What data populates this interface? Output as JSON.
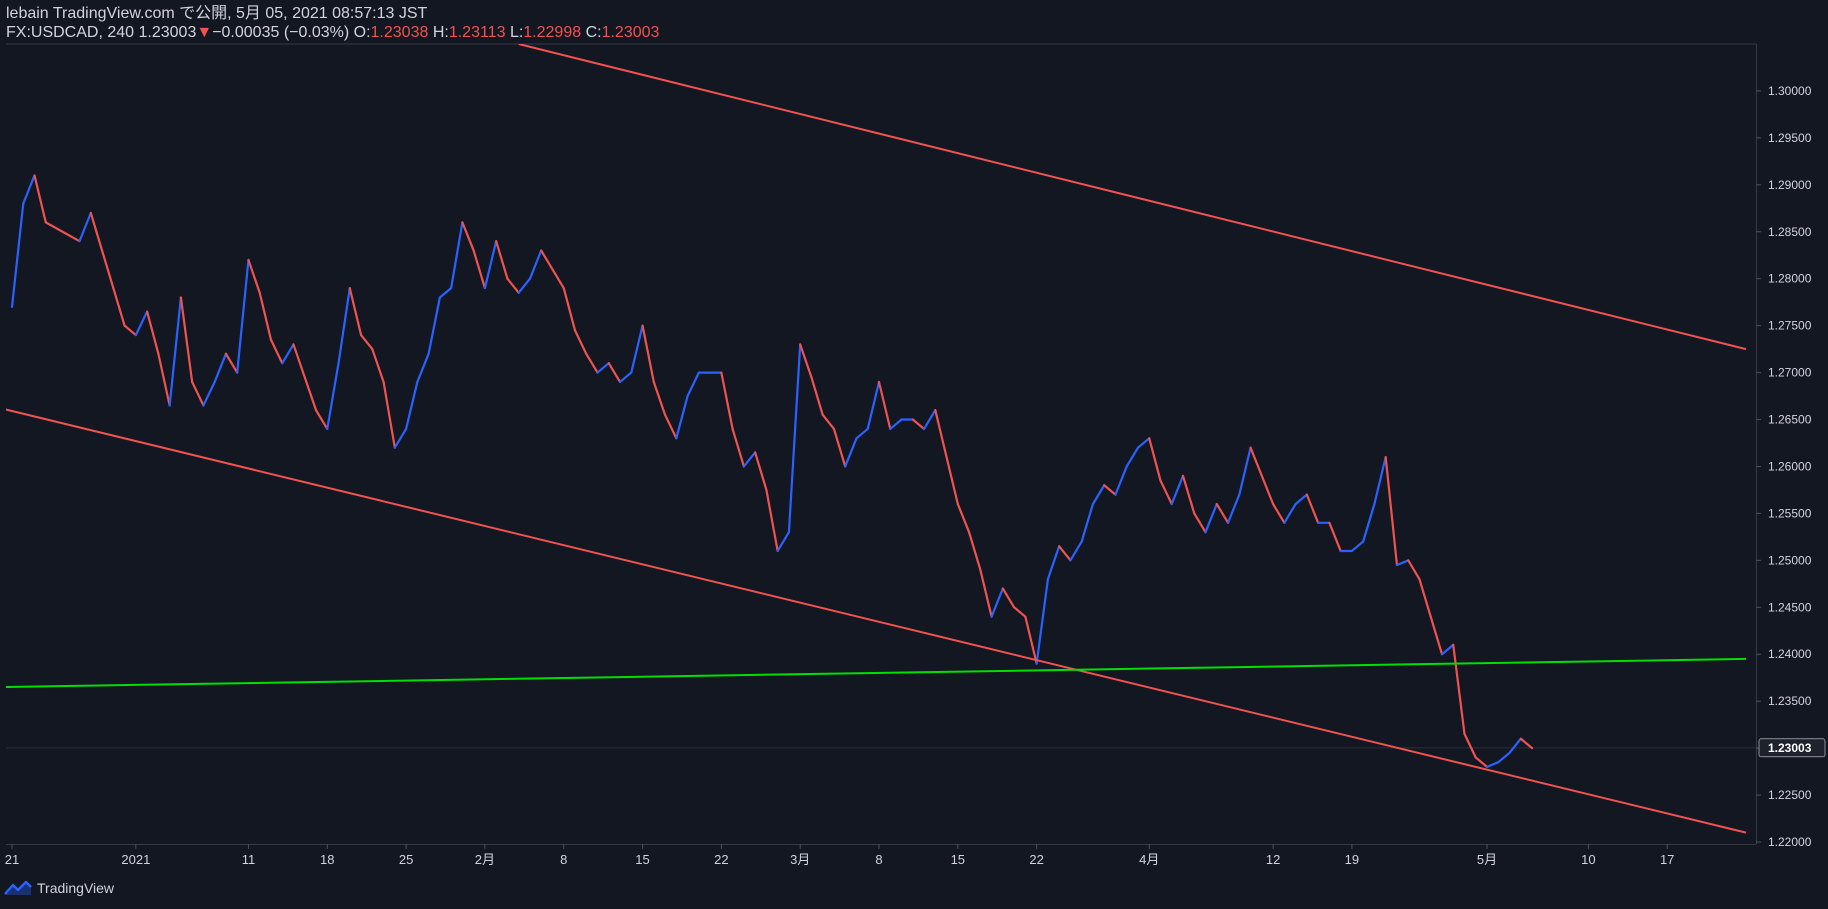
{
  "header": {
    "publish_line": "lebain TradingView.com で公開, 5月 05, 2021 08:57:13 JST",
    "symbol": "FX:USDCAD, 240",
    "last": "1.23003",
    "change": "−0.00035 (−0.03%)",
    "o_label": "O:",
    "o_value": "1.23038",
    "h_label": "H:",
    "h_value": "1.23113",
    "l_label": "L:",
    "l_value": "1.22998",
    "c_label": "C:",
    "c_value": "1.23003"
  },
  "footer": {
    "brand": "TradingView"
  },
  "colors": {
    "background": "#131722",
    "up": "#2962ff",
    "down": "#ef5350",
    "channel": "#f05350",
    "support": "#00e000",
    "text": "#d1d4dc"
  },
  "chart_data": {
    "type": "line",
    "symbol": "FX:USDCAD",
    "interval": "240",
    "y_range": [
      1.22,
      1.305
    ],
    "y_ticks": [
      "1.22000",
      "1.22500",
      "1.23000",
      "1.23500",
      "1.24000",
      "1.24500",
      "1.25000",
      "1.25500",
      "1.26000",
      "1.26500",
      "1.27000",
      "1.27500",
      "1.28000",
      "1.28500",
      "1.29000",
      "1.29500",
      "1.30000"
    ],
    "last_price_label": "1.23003",
    "x_range": [
      "2020-12-21",
      "2021-05-24"
    ],
    "x_ticks": [
      {
        "label": "21",
        "date": "2020-12-21"
      },
      {
        "label": "2021",
        "date": "2021-01-01"
      },
      {
        "label": "11",
        "date": "2021-01-11"
      },
      {
        "label": "18",
        "date": "2021-01-18"
      },
      {
        "label": "25",
        "date": "2021-01-25"
      },
      {
        "label": "2月",
        "date": "2021-02-01"
      },
      {
        "label": "8",
        "date": "2021-02-08"
      },
      {
        "label": "15",
        "date": "2021-02-15"
      },
      {
        "label": "22",
        "date": "2021-02-22"
      },
      {
        "label": "3月",
        "date": "2021-03-01"
      },
      {
        "label": "8",
        "date": "2021-03-08"
      },
      {
        "label": "15",
        "date": "2021-03-15"
      },
      {
        "label": "22",
        "date": "2021-03-22"
      },
      {
        "label": "4月",
        "date": "2021-04-01"
      },
      {
        "label": "12",
        "date": "2021-04-12"
      },
      {
        "label": "19",
        "date": "2021-04-19"
      },
      {
        "label": "5月",
        "date": "2021-05-01"
      },
      {
        "label": "10",
        "date": "2021-05-10"
      },
      {
        "label": "17",
        "date": "2021-05-17"
      }
    ],
    "series": [
      {
        "kind": "price",
        "points": [
          [
            "2020-12-21",
            1.277
          ],
          [
            "2020-12-22",
            1.288
          ],
          [
            "2020-12-23",
            1.291
          ],
          [
            "2020-12-24",
            1.286
          ],
          [
            "2020-12-27",
            1.284
          ],
          [
            "2020-12-28",
            1.287
          ],
          [
            "2020-12-29",
            1.283
          ],
          [
            "2020-12-30",
            1.279
          ],
          [
            "2020-12-31",
            1.275
          ],
          [
            "2021-01-01",
            1.274
          ],
          [
            "2021-01-02",
            1.2765
          ],
          [
            "2021-01-03",
            1.272
          ],
          [
            "2021-01-04",
            1.2665
          ],
          [
            "2021-01-05",
            1.278
          ],
          [
            "2021-01-06",
            1.269
          ],
          [
            "2021-01-07",
            1.2665
          ],
          [
            "2021-01-08",
            1.269
          ],
          [
            "2021-01-09",
            1.272
          ],
          [
            "2021-01-10",
            1.27
          ],
          [
            "2021-01-11",
            1.282
          ],
          [
            "2021-01-12",
            1.2785
          ],
          [
            "2021-01-13",
            1.2735
          ],
          [
            "2021-01-14",
            1.271
          ],
          [
            "2021-01-15",
            1.273
          ],
          [
            "2021-01-17",
            1.266
          ],
          [
            "2021-01-18",
            1.264
          ],
          [
            "2021-01-19",
            1.271
          ],
          [
            "2021-01-20",
            1.279
          ],
          [
            "2021-01-21",
            1.274
          ],
          [
            "2021-01-22",
            1.2725
          ],
          [
            "2021-01-23",
            1.269
          ],
          [
            "2021-01-24",
            1.262
          ],
          [
            "2021-01-25",
            1.264
          ],
          [
            "2021-01-26",
            1.269
          ],
          [
            "2021-01-27",
            1.272
          ],
          [
            "2021-01-28",
            1.278
          ],
          [
            "2021-01-29",
            1.279
          ],
          [
            "2021-01-30",
            1.286
          ],
          [
            "2021-01-31",
            1.283
          ],
          [
            "2021-02-01",
            1.279
          ],
          [
            "2021-02-02",
            1.284
          ],
          [
            "2021-02-03",
            1.28
          ],
          [
            "2021-02-04",
            1.2785
          ],
          [
            "2021-02-05",
            1.28
          ],
          [
            "2021-02-06",
            1.283
          ],
          [
            "2021-02-07",
            1.281
          ],
          [
            "2021-02-08",
            1.279
          ],
          [
            "2021-02-09",
            1.2745
          ],
          [
            "2021-02-10",
            1.272
          ],
          [
            "2021-02-11",
            1.27
          ],
          [
            "2021-02-12",
            1.271
          ],
          [
            "2021-02-13",
            1.269
          ],
          [
            "2021-02-14",
            1.27
          ],
          [
            "2021-02-15",
            1.275
          ],
          [
            "2021-02-16",
            1.269
          ],
          [
            "2021-02-17",
            1.2655
          ],
          [
            "2021-02-18",
            1.263
          ],
          [
            "2021-02-19",
            1.2675
          ],
          [
            "2021-02-20",
            1.27
          ],
          [
            "2021-02-21",
            1.27
          ],
          [
            "2021-02-22",
            1.27
          ],
          [
            "2021-02-23",
            1.264
          ],
          [
            "2021-02-24",
            1.26
          ],
          [
            "2021-02-25",
            1.2615
          ],
          [
            "2021-02-26",
            1.2575
          ],
          [
            "2021-02-27",
            1.251
          ],
          [
            "2021-02-28",
            1.253
          ],
          [
            "2021-03-01",
            1.273
          ],
          [
            "2021-03-02",
            1.2695
          ],
          [
            "2021-03-03",
            1.2655
          ],
          [
            "2021-03-04",
            1.264
          ],
          [
            "2021-03-05",
            1.26
          ],
          [
            "2021-03-06",
            1.263
          ],
          [
            "2021-03-07",
            1.264
          ],
          [
            "2021-03-08",
            1.269
          ],
          [
            "2021-03-09",
            1.264
          ],
          [
            "2021-03-10",
            1.265
          ],
          [
            "2021-03-11",
            1.265
          ],
          [
            "2021-03-12",
            1.264
          ],
          [
            "2021-03-13",
            1.266
          ],
          [
            "2021-03-14",
            1.261
          ],
          [
            "2021-03-15",
            1.256
          ],
          [
            "2021-03-16",
            1.253
          ],
          [
            "2021-03-17",
            1.249
          ],
          [
            "2021-03-18",
            1.244
          ],
          [
            "2021-03-19",
            1.247
          ],
          [
            "2021-03-20",
            1.245
          ],
          [
            "2021-03-21",
            1.244
          ],
          [
            "2021-03-22",
            1.239
          ],
          [
            "2021-03-23",
            1.248
          ],
          [
            "2021-03-24",
            1.2515
          ],
          [
            "2021-03-25",
            1.25
          ],
          [
            "2021-03-26",
            1.252
          ],
          [
            "2021-03-27",
            1.256
          ],
          [
            "2021-03-28",
            1.258
          ],
          [
            "2021-03-29",
            1.257
          ],
          [
            "2021-03-30",
            1.26
          ],
          [
            "2021-03-31",
            1.262
          ],
          [
            "2021-04-01",
            1.263
          ],
          [
            "2021-04-02",
            1.2585
          ],
          [
            "2021-04-03",
            1.256
          ],
          [
            "2021-04-04",
            1.259
          ],
          [
            "2021-04-05",
            1.255
          ],
          [
            "2021-04-06",
            1.253
          ],
          [
            "2021-04-07",
            1.256
          ],
          [
            "2021-04-08",
            1.254
          ],
          [
            "2021-04-09",
            1.257
          ],
          [
            "2021-04-10",
            1.262
          ],
          [
            "2021-04-11",
            1.259
          ],
          [
            "2021-04-12",
            1.256
          ],
          [
            "2021-04-13",
            1.254
          ],
          [
            "2021-04-14",
            1.256
          ],
          [
            "2021-04-15",
            1.257
          ],
          [
            "2021-04-16",
            1.254
          ],
          [
            "2021-04-17",
            1.254
          ],
          [
            "2021-04-18",
            1.251
          ],
          [
            "2021-04-19",
            1.251
          ],
          [
            "2021-04-20",
            1.252
          ],
          [
            "2021-04-21",
            1.256
          ],
          [
            "2021-04-22",
            1.261
          ],
          [
            "2021-04-23",
            1.2495
          ],
          [
            "2021-04-24",
            1.25
          ],
          [
            "2021-04-25",
            1.248
          ],
          [
            "2021-04-26",
            1.244
          ],
          [
            "2021-04-27",
            1.24
          ],
          [
            "2021-04-28",
            1.241
          ],
          [
            "2021-04-29",
            1.2315
          ],
          [
            "2021-04-30",
            1.229
          ],
          [
            "2021-05-01",
            1.228
          ],
          [
            "2021-05-02",
            1.2285
          ],
          [
            "2021-05-03",
            1.2295
          ],
          [
            "2021-05-04",
            1.231
          ],
          [
            "2021-05-05",
            1.23
          ]
        ]
      },
      {
        "kind": "channel-upper",
        "points": [
          [
            "2021-02-04",
            1.305
          ],
          [
            "2021-05-24",
            1.2725
          ]
        ]
      },
      {
        "kind": "channel-lower",
        "points": [
          [
            "2020-12-20",
            1.2662
          ],
          [
            "2021-05-24",
            1.221
          ]
        ]
      },
      {
        "kind": "support",
        "points": [
          [
            "2020-12-20",
            1.2365
          ],
          [
            "2021-05-24",
            1.2395
          ]
        ]
      }
    ]
  }
}
